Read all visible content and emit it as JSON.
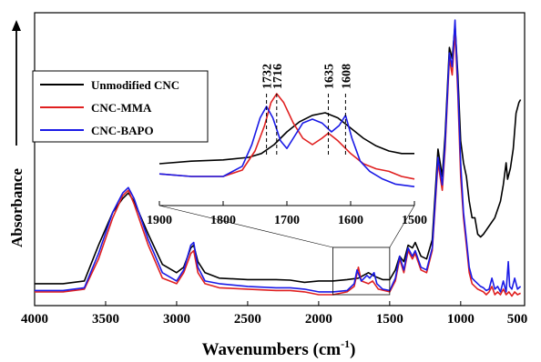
{
  "chart_data": {
    "type": "line",
    "xlabel_main": "Wavenumbers (cm",
    "xlabel_sup": "-1",
    "xlabel_tail": ")",
    "ylabel": "Absorbance",
    "xlim": [
      4000,
      550
    ],
    "x_reversed": true,
    "y_ticks_shown": false,
    "xticks": [
      4000,
      3500,
      3000,
      2500,
      2000,
      1500,
      1000,
      500
    ],
    "inset": {
      "xlim": [
        1900,
        1500
      ],
      "xticks": [
        1900,
        1800,
        1700,
        1600,
        1500
      ],
      "source_range": [
        1900,
        1500
      ],
      "peak_labels": [
        {
          "text": "1732",
          "x": 1732
        },
        {
          "text": "1716",
          "x": 1716
        },
        {
          "text": "1635",
          "x": 1635
        },
        {
          "text": "1608",
          "x": 1608
        }
      ]
    },
    "legend": {
      "placement": "top-left",
      "entries": [
        {
          "name": "Unmodified CNC",
          "color": "#000000"
        },
        {
          "name": "CNC-MMA",
          "color": "#e02020"
        },
        {
          "name": "CNC-BAPO",
          "color": "#1a1ae6"
        }
      ]
    },
    "series": [
      {
        "name": "Unmodified CNC",
        "color": "#000000",
        "points": [
          [
            4000,
            0.06
          ],
          [
            3800,
            0.06
          ],
          [
            3650,
            0.07
          ],
          [
            3550,
            0.2
          ],
          [
            3450,
            0.32
          ],
          [
            3380,
            0.37
          ],
          [
            3340,
            0.39
          ],
          [
            3300,
            0.36
          ],
          [
            3200,
            0.24
          ],
          [
            3100,
            0.13
          ],
          [
            3000,
            0.1
          ],
          [
            2950,
            0.12
          ],
          [
            2900,
            0.19
          ],
          [
            2880,
            0.2
          ],
          [
            2850,
            0.14
          ],
          [
            2800,
            0.1
          ],
          [
            2700,
            0.08
          ],
          [
            2500,
            0.075
          ],
          [
            2300,
            0.075
          ],
          [
            2200,
            0.073
          ],
          [
            2100,
            0.065
          ],
          [
            2000,
            0.07
          ],
          [
            1900,
            0.07
          ],
          [
            1800,
            0.075
          ],
          [
            1720,
            0.08
          ],
          [
            1650,
            0.1
          ],
          [
            1600,
            0.085
          ],
          [
            1550,
            0.075
          ],
          [
            1500,
            0.075
          ],
          [
            1460,
            0.11
          ],
          [
            1430,
            0.16
          ],
          [
            1400,
            0.14
          ],
          [
            1370,
            0.2
          ],
          [
            1340,
            0.19
          ],
          [
            1320,
            0.21
          ],
          [
            1280,
            0.16
          ],
          [
            1240,
            0.15
          ],
          [
            1200,
            0.22
          ],
          [
            1160,
            0.55
          ],
          [
            1130,
            0.45
          ],
          [
            1110,
            0.6
          ],
          [
            1080,
            0.92
          ],
          [
            1060,
            0.88
          ],
          [
            1040,
            1.0
          ],
          [
            1020,
            0.82
          ],
          [
            1000,
            0.58
          ],
          [
            980,
            0.5
          ],
          [
            960,
            0.45
          ],
          [
            940,
            0.36
          ],
          [
            920,
            0.3
          ],
          [
            900,
            0.3
          ],
          [
            880,
            0.24
          ],
          [
            860,
            0.23
          ],
          [
            840,
            0.24
          ],
          [
            800,
            0.27
          ],
          [
            760,
            0.3
          ],
          [
            720,
            0.36
          ],
          [
            700,
            0.42
          ],
          [
            680,
            0.5
          ],
          [
            670,
            0.44
          ],
          [
            650,
            0.48
          ],
          [
            630,
            0.55
          ],
          [
            610,
            0.68
          ],
          [
            590,
            0.72
          ],
          [
            578,
            0.73
          ]
        ]
      },
      {
        "name": "CNC-MMA",
        "color": "#e02020",
        "points": [
          [
            4000,
            0.03
          ],
          [
            3800,
            0.03
          ],
          [
            3650,
            0.04
          ],
          [
            3550,
            0.15
          ],
          [
            3450,
            0.3
          ],
          [
            3380,
            0.38
          ],
          [
            3340,
            0.4
          ],
          [
            3300,
            0.35
          ],
          [
            3200,
            0.2
          ],
          [
            3100,
            0.08
          ],
          [
            3000,
            0.06
          ],
          [
            2950,
            0.1
          ],
          [
            2900,
            0.17
          ],
          [
            2880,
            0.18
          ],
          [
            2850,
            0.1
          ],
          [
            2800,
            0.06
          ],
          [
            2700,
            0.045
          ],
          [
            2500,
            0.04
          ],
          [
            2300,
            0.035
          ],
          [
            2200,
            0.035
          ],
          [
            2100,
            0.03
          ],
          [
            2000,
            0.02
          ],
          [
            1900,
            0.02
          ],
          [
            1800,
            0.03
          ],
          [
            1750,
            0.05
          ],
          [
            1720,
            0.12
          ],
          [
            1700,
            0.07
          ],
          [
            1650,
            0.06
          ],
          [
            1620,
            0.07
          ],
          [
            1580,
            0.04
          ],
          [
            1500,
            0.03
          ],
          [
            1460,
            0.07
          ],
          [
            1430,
            0.15
          ],
          [
            1400,
            0.1
          ],
          [
            1370,
            0.18
          ],
          [
            1340,
            0.15
          ],
          [
            1320,
            0.17
          ],
          [
            1280,
            0.11
          ],
          [
            1240,
            0.1
          ],
          [
            1200,
            0.18
          ],
          [
            1160,
            0.5
          ],
          [
            1130,
            0.4
          ],
          [
            1110,
            0.55
          ],
          [
            1080,
            0.88
          ],
          [
            1060,
            0.82
          ],
          [
            1040,
            0.98
          ],
          [
            1020,
            0.75
          ],
          [
            1000,
            0.45
          ],
          [
            980,
            0.3
          ],
          [
            960,
            0.2
          ],
          [
            940,
            0.1
          ],
          [
            920,
            0.06
          ],
          [
            900,
            0.05
          ],
          [
            880,
            0.04
          ],
          [
            860,
            0.035
          ],
          [
            840,
            0.03
          ],
          [
            820,
            0.02
          ],
          [
            800,
            0.03
          ],
          [
            780,
            0.05
          ],
          [
            760,
            0.02
          ],
          [
            740,
            0.03
          ],
          [
            720,
            0.02
          ],
          [
            700,
            0.04
          ],
          [
            680,
            0.02
          ],
          [
            660,
            0.03
          ],
          [
            640,
            0.015
          ],
          [
            620,
            0.03
          ],
          [
            600,
            0.02
          ],
          [
            578,
            0.025
          ]
        ]
      },
      {
        "name": "CNC-BAPO",
        "color": "#1a1ae6",
        "points": [
          [
            4000,
            0.035
          ],
          [
            3800,
            0.035
          ],
          [
            3650,
            0.045
          ],
          [
            3550,
            0.17
          ],
          [
            3450,
            0.32
          ],
          [
            3380,
            0.39
          ],
          [
            3340,
            0.41
          ],
          [
            3300,
            0.37
          ],
          [
            3200,
            0.22
          ],
          [
            3100,
            0.1
          ],
          [
            3000,
            0.07
          ],
          [
            2950,
            0.11
          ],
          [
            2900,
            0.2
          ],
          [
            2880,
            0.21
          ],
          [
            2850,
            0.12
          ],
          [
            2800,
            0.07
          ],
          [
            2700,
            0.06
          ],
          [
            2500,
            0.05
          ],
          [
            2300,
            0.045
          ],
          [
            2200,
            0.045
          ],
          [
            2100,
            0.04
          ],
          [
            2000,
            0.03
          ],
          [
            1900,
            0.03
          ],
          [
            1800,
            0.035
          ],
          [
            1750,
            0.06
          ],
          [
            1730,
            0.11
          ],
          [
            1700,
            0.07
          ],
          [
            1660,
            0.09
          ],
          [
            1640,
            0.08
          ],
          [
            1610,
            0.1
          ],
          [
            1590,
            0.06
          ],
          [
            1550,
            0.04
          ],
          [
            1500,
            0.035
          ],
          [
            1460,
            0.08
          ],
          [
            1430,
            0.16
          ],
          [
            1400,
            0.11
          ],
          [
            1370,
            0.19
          ],
          [
            1340,
            0.16
          ],
          [
            1320,
            0.18
          ],
          [
            1280,
            0.12
          ],
          [
            1240,
            0.11
          ],
          [
            1200,
            0.19
          ],
          [
            1160,
            0.52
          ],
          [
            1130,
            0.42
          ],
          [
            1110,
            0.57
          ],
          [
            1080,
            0.9
          ],
          [
            1060,
            0.85
          ],
          [
            1040,
            1.02
          ],
          [
            1020,
            0.78
          ],
          [
            1000,
            0.5
          ],
          [
            980,
            0.32
          ],
          [
            960,
            0.22
          ],
          [
            940,
            0.12
          ],
          [
            920,
            0.08
          ],
          [
            900,
            0.07
          ],
          [
            880,
            0.06
          ],
          [
            860,
            0.05
          ],
          [
            840,
            0.045
          ],
          [
            820,
            0.035
          ],
          [
            800,
            0.04
          ],
          [
            780,
            0.08
          ],
          [
            760,
            0.04
          ],
          [
            740,
            0.05
          ],
          [
            720,
            0.03
          ],
          [
            700,
            0.07
          ],
          [
            680,
            0.03
          ],
          [
            665,
            0.14
          ],
          [
            655,
            0.05
          ],
          [
            640,
            0.04
          ],
          [
            620,
            0.08
          ],
          [
            600,
            0.04
          ],
          [
            578,
            0.05
          ]
        ]
      }
    ],
    "inset_series": [
      {
        "name": "Unmodified CNC",
        "color": "#000000",
        "points": [
          [
            1900,
            0.3
          ],
          [
            1850,
            0.32
          ],
          [
            1800,
            0.33
          ],
          [
            1760,
            0.35
          ],
          [
            1740,
            0.38
          ],
          [
            1720,
            0.45
          ],
          [
            1700,
            0.55
          ],
          [
            1680,
            0.63
          ],
          [
            1660,
            0.68
          ],
          [
            1640,
            0.7
          ],
          [
            1620,
            0.66
          ],
          [
            1600,
            0.58
          ],
          [
            1580,
            0.5
          ],
          [
            1560,
            0.44
          ],
          [
            1540,
            0.4
          ],
          [
            1520,
            0.38
          ],
          [
            1500,
            0.38
          ]
        ]
      },
      {
        "name": "CNC-MMA",
        "color": "#e02020",
        "points": [
          [
            1900,
            0.22
          ],
          [
            1850,
            0.2
          ],
          [
            1800,
            0.2
          ],
          [
            1770,
            0.25
          ],
          [
            1750,
            0.4
          ],
          [
            1735,
            0.6
          ],
          [
            1725,
            0.78
          ],
          [
            1716,
            0.85
          ],
          [
            1705,
            0.78
          ],
          [
            1690,
            0.62
          ],
          [
            1675,
            0.5
          ],
          [
            1660,
            0.45
          ],
          [
            1645,
            0.5
          ],
          [
            1635,
            0.54
          ],
          [
            1620,
            0.48
          ],
          [
            1600,
            0.38
          ],
          [
            1580,
            0.3
          ],
          [
            1560,
            0.26
          ],
          [
            1540,
            0.24
          ],
          [
            1520,
            0.2
          ],
          [
            1500,
            0.18
          ]
        ]
      },
      {
        "name": "CNC-BAPO",
        "color": "#1a1ae6",
        "points": [
          [
            1900,
            0.22
          ],
          [
            1850,
            0.2
          ],
          [
            1800,
            0.2
          ],
          [
            1770,
            0.28
          ],
          [
            1755,
            0.45
          ],
          [
            1742,
            0.66
          ],
          [
            1732,
            0.75
          ],
          [
            1722,
            0.66
          ],
          [
            1710,
            0.48
          ],
          [
            1700,
            0.42
          ],
          [
            1690,
            0.5
          ],
          [
            1675,
            0.62
          ],
          [
            1660,
            0.65
          ],
          [
            1645,
            0.62
          ],
          [
            1630,
            0.55
          ],
          [
            1618,
            0.6
          ],
          [
            1608,
            0.68
          ],
          [
            1598,
            0.5
          ],
          [
            1585,
            0.32
          ],
          [
            1570,
            0.24
          ],
          [
            1550,
            0.18
          ],
          [
            1530,
            0.14
          ],
          [
            1500,
            0.12
          ]
        ]
      }
    ]
  }
}
